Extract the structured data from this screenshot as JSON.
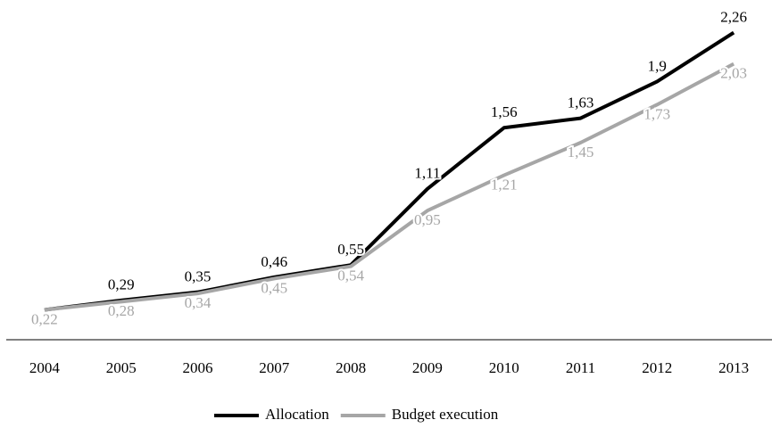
{
  "chart_data": {
    "type": "line",
    "categories": [
      "2004",
      "2005",
      "2006",
      "2007",
      "2008",
      "2009",
      "2010",
      "2011",
      "2012",
      "2013"
    ],
    "series": [
      {
        "name": "Allocation",
        "color": "#000000",
        "values": [
          0.22,
          0.29,
          0.35,
          0.46,
          0.55,
          1.11,
          1.56,
          1.63,
          1.9,
          2.26
        ],
        "value_labels": [
          null,
          "0,29",
          "0,35",
          "0,46",
          "0,55",
          "1,11",
          "1,56",
          "1,63",
          "1,9",
          "2,26"
        ]
      },
      {
        "name": "Budget execution",
        "color": "#a6a6a6",
        "values": [
          0.22,
          0.28,
          0.34,
          0.45,
          0.54,
          0.95,
          1.21,
          1.45,
          1.73,
          2.03
        ],
        "value_labels": [
          "0,22",
          "0,28",
          "0,34",
          "0,45",
          "0,54",
          "0,95",
          "1,21",
          "1,45",
          "1,73",
          "2,03"
        ]
      }
    ],
    "ylim": [
      0,
      2.5
    ]
  }
}
